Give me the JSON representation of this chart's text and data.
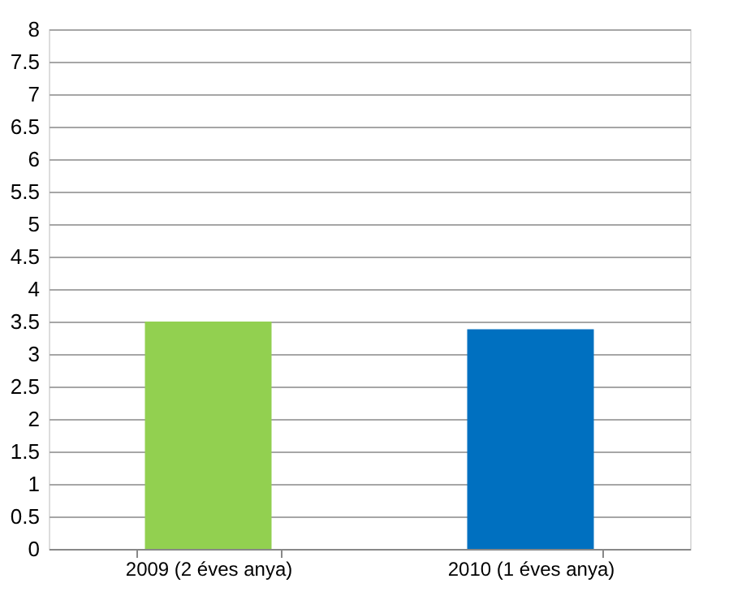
{
  "chart_data": {
    "type": "bar",
    "categories": [
      "2009 (2 éves anya)",
      "2010 (1 éves anya)"
    ],
    "values": [
      3.5,
      3.38
    ],
    "colors": [
      "#92d050",
      "#0070c0"
    ],
    "ylim": [
      0,
      8
    ],
    "yticks": [
      0,
      0.5,
      1,
      1.5,
      2,
      2.5,
      3,
      3.5,
      4,
      4.5,
      5,
      5.5,
      6,
      6.5,
      7,
      7.5,
      8
    ],
    "grid": "y"
  }
}
